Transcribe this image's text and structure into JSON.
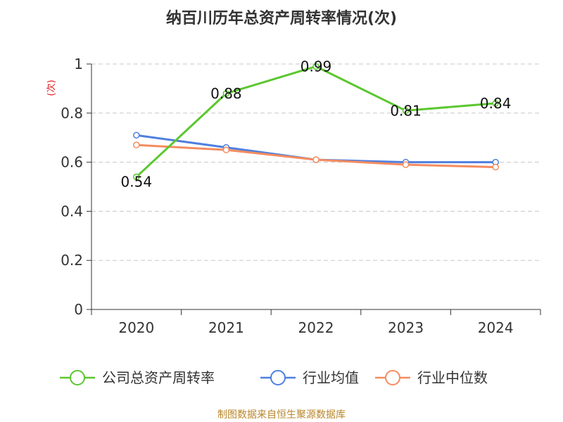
{
  "chart_data": {
    "type": "line",
    "title": "纳百川历年总资产周转率情况(次)",
    "ylabel": "(次)",
    "xlabel": "",
    "categories": [
      "2020",
      "2021",
      "2022",
      "2023",
      "2024"
    ],
    "ylim": [
      0,
      1
    ],
    "yticks": [
      "0",
      "0.2",
      "0.4",
      "0.6",
      "0.8",
      "1"
    ],
    "grid": true,
    "legend_position": "bottom",
    "series": [
      {
        "name": "公司总资产周转率",
        "color": "#5bc72e",
        "values": [
          0.54,
          0.88,
          0.99,
          0.81,
          0.84
        ],
        "data_labels": [
          "0.54",
          "0.88",
          "0.99",
          "0.81",
          "0.84"
        ]
      },
      {
        "name": "行业均值",
        "color": "#4f7fde",
        "values": [
          0.71,
          0.66,
          0.61,
          0.6,
          0.6
        ]
      },
      {
        "name": "行业中位数",
        "color": "#f58c60",
        "values": [
          0.67,
          0.65,
          0.61,
          0.59,
          0.58
        ]
      }
    ],
    "source": "制图数据来自恒生聚源数据库"
  }
}
